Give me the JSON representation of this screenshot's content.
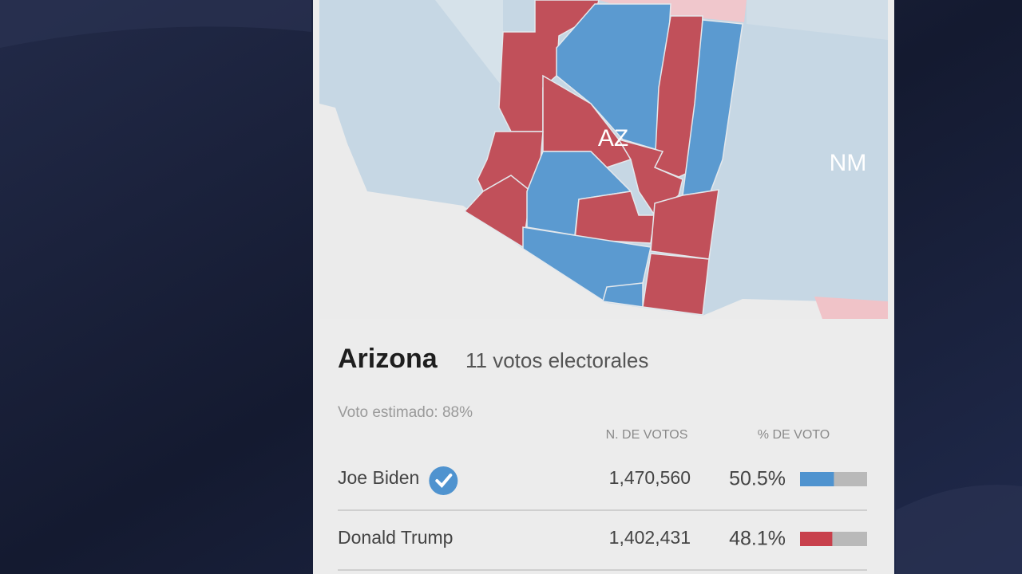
{
  "map": {
    "labels": [
      "AZ",
      "NM"
    ]
  },
  "header": {
    "title": "Arizona",
    "subtitle": "11 votos electorales"
  },
  "estimate": "Voto estimado: 88%",
  "table": {
    "columns": [
      "N. DE VOTOS",
      "% DE VOTO"
    ],
    "rows": [
      {
        "name": "Joe Biden",
        "winner": true,
        "votes": "1,470,560",
        "pct": {
          "value": 50.5,
          "label": "50.5%"
        },
        "color": "#4f93cf"
      },
      {
        "name": "Donald Trump",
        "winner": false,
        "votes": "1,402,431",
        "pct": {
          "value": 48.1,
          "label": "48.1%"
        },
        "color": "#c8404c"
      }
    ]
  }
}
